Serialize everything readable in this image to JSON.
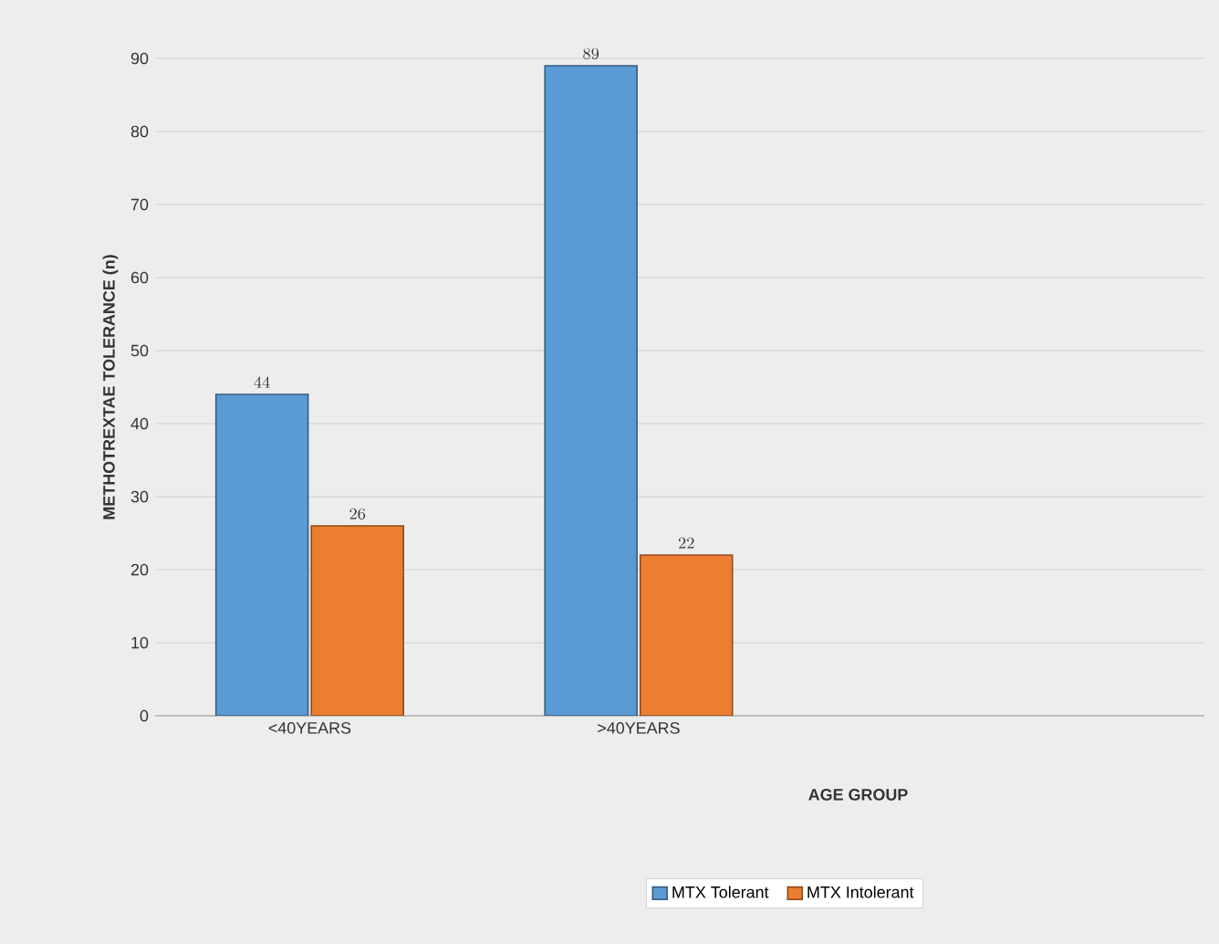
{
  "chart_data": {
    "type": "bar",
    "xlabel": "AGE GROUP",
    "ylabel": "METHOTREXTAE  TOLERANCE (n)",
    "categories": [
      "<40YEARS",
      ">40YEARS"
    ],
    "series": [
      {
        "name": "MTX Tolerant",
        "color": "#5b9bd5",
        "values": [
          44,
          89
        ]
      },
      {
        "name": "MTX Intolerant",
        "color": "#ed7d31",
        "values": [
          26,
          22
        ]
      }
    ],
    "ylim": [
      0,
      90
    ],
    "yticks": [
      0,
      10,
      20,
      30,
      40,
      50,
      60,
      70,
      80,
      90
    ],
    "grid": "y",
    "legend": "bottom",
    "data_labels": true
  }
}
